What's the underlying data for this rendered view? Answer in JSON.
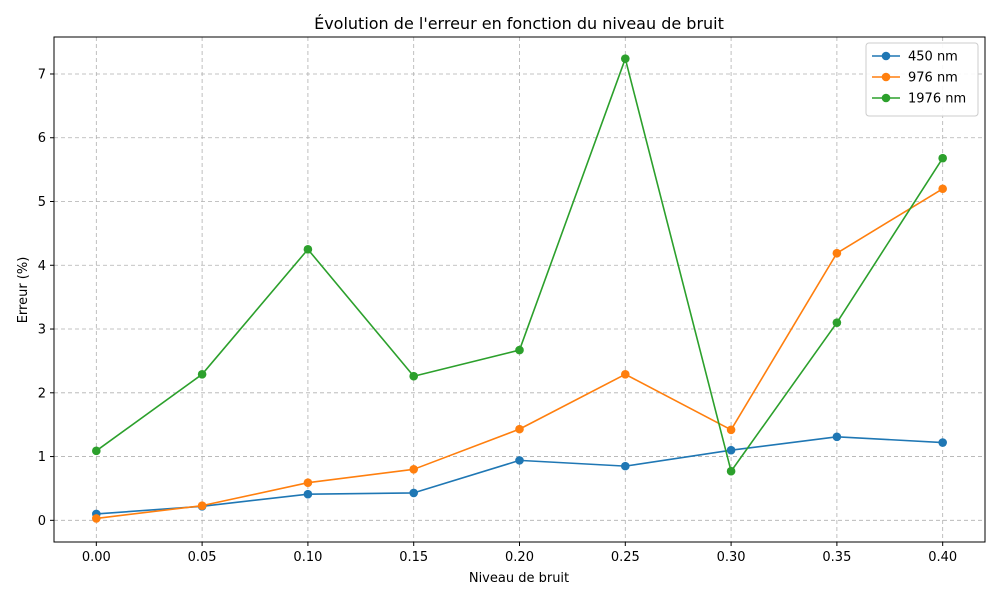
{
  "chart_data": {
    "type": "line",
    "title": "Évolution de l'erreur en fonction du niveau de bruit",
    "xlabel": "Niveau de bruit",
    "ylabel": "Erreur (%)",
    "x": [
      0.0,
      0.05,
      0.1,
      0.15,
      0.2,
      0.25,
      0.3,
      0.35,
      0.4
    ],
    "x_tick_labels": [
      "0.00",
      "0.05",
      "0.10",
      "0.15",
      "0.20",
      "0.25",
      "0.30",
      "0.35",
      "0.40"
    ],
    "y_ticks": [
      0,
      1,
      2,
      3,
      4,
      5,
      6,
      7
    ],
    "xlim": [
      -0.02,
      0.42
    ],
    "ylim": [
      -0.34,
      7.58
    ],
    "grid": true,
    "legend_position": "top-right",
    "series": [
      {
        "name": "450 nm",
        "color": "#1f77b4",
        "values": [
          0.1,
          0.22,
          0.41,
          0.43,
          0.94,
          0.85,
          1.1,
          1.31,
          1.22
        ]
      },
      {
        "name": "976 nm",
        "color": "#ff7f0e",
        "values": [
          0.03,
          0.23,
          0.59,
          0.8,
          1.43,
          2.29,
          1.42,
          4.19,
          5.2
        ]
      },
      {
        "name": "1976 nm",
        "color": "#2ca02c",
        "values": [
          1.09,
          2.29,
          4.25,
          2.26,
          2.67,
          7.24,
          0.77,
          3.1,
          5.68
        ]
      }
    ]
  }
}
